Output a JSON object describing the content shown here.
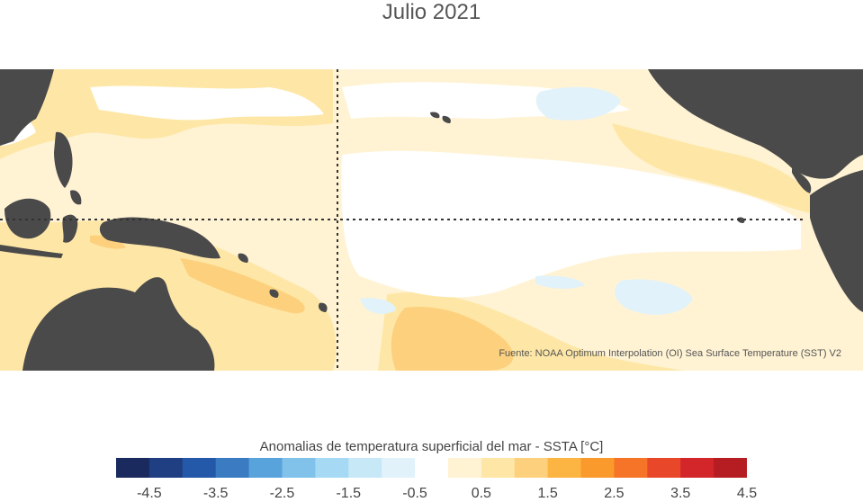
{
  "title": "Julio 2021",
  "source": "Fuente: NOAA Optimum Interpolation (OI) Sea Surface Temperature (SST) V2",
  "colorbar": {
    "label": "Anomalias de temperatura superficial del mar - SSTA  [°C]",
    "ticks": [
      "-4.5",
      "-3.5",
      "-2.5",
      "-1.5",
      "-0.5",
      "0.5",
      "1.5",
      "2.5",
      "3.5",
      "4.5"
    ],
    "colors": [
      "#1a2a5e",
      "#1f3f82",
      "#2458a8",
      "#3a7bc2",
      "#58a3db",
      "#80c2ea",
      "#a6daf4",
      "#c6e8f7",
      "#e1f2fa",
      "#ffffff",
      "#fff3d4",
      "#fee7a6",
      "#fdd07d",
      "#fcb442",
      "#fb9a2c",
      "#f57428",
      "#e8472a",
      "#d3262a",
      "#b51d22"
    ]
  },
  "colors": {
    "land": "#4a4a4a",
    "ocean_warm_light": "#fff3d4",
    "ocean_warm": "#fee7a6",
    "ocean_warmer": "#fdd07d",
    "ocean_cool": "#e1f2fa",
    "ocean_neutral": "#ffffff"
  }
}
